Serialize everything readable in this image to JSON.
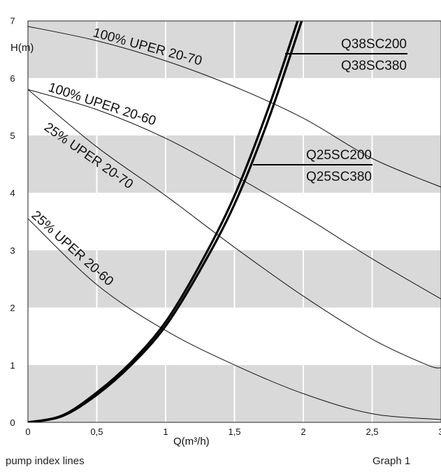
{
  "chart_data": {
    "type": "line",
    "xlabel": "Q(m³/h)",
    "ylabel": "H(m)",
    "xlim": [
      0,
      3
    ],
    "ylim": [
      0,
      7
    ],
    "x_ticks": [
      "0",
      "0,5",
      "1",
      "1,5",
      "2",
      "2,5",
      "3"
    ],
    "y_ticks": [
      "0",
      "1",
      "2",
      "3",
      "4",
      "5",
      "6",
      "7"
    ],
    "grid": true,
    "background_bands": [
      "#d9d9d9",
      "#ffffff"
    ],
    "pump_curves": [
      {
        "label": "100% UPER 20-70",
        "x": [
          0,
          0.5,
          1,
          1.5,
          2,
          2.5,
          3
        ],
        "y": [
          6.9,
          6.65,
          6.3,
          5.85,
          5.3,
          4.6,
          4.1
        ]
      },
      {
        "label": "100% UPER 20-60",
        "x": [
          0,
          0.5,
          1,
          1.5,
          2,
          2.5,
          3
        ],
        "y": [
          5.8,
          5.45,
          4.95,
          4.3,
          3.6,
          2.85,
          2.15
        ]
      },
      {
        "label": "25% UPER 20-70",
        "x": [
          0,
          0.5,
          1,
          1.5,
          2,
          2.5,
          2.9,
          3
        ],
        "y": [
          5.8,
          4.8,
          3.95,
          3.05,
          2.2,
          1.45,
          1.0,
          0.95
        ]
      },
      {
        "label": "25% UPER 20-60",
        "x": [
          0,
          0.5,
          1,
          1.5,
          2,
          2.5,
          3
        ],
        "y": [
          3.55,
          2.4,
          1.6,
          1.0,
          0.5,
          0.15,
          0.05
        ]
      }
    ],
    "system_curves": [
      {
        "labels": [
          "Q38SC200",
          "Q38SC380"
        ],
        "x": [
          0,
          0.25,
          0.5,
          0.75,
          1,
          1.25,
          1.5,
          1.75,
          2.0
        ],
        "y": [
          0,
          0.12,
          0.52,
          1.05,
          1.75,
          2.75,
          3.95,
          5.5,
          7.3
        ]
      },
      {
        "labels": [
          "Q25SC200",
          "Q25SC380"
        ],
        "x": [
          0,
          0.25,
          0.5,
          0.75,
          1,
          1.25,
          1.5,
          1.75,
          2.03
        ],
        "y": [
          0,
          0.11,
          0.48,
          1.0,
          1.68,
          2.65,
          3.8,
          5.3,
          7.3
        ]
      }
    ]
  },
  "captions": {
    "left": "pump index lines",
    "right": "Graph 1"
  }
}
